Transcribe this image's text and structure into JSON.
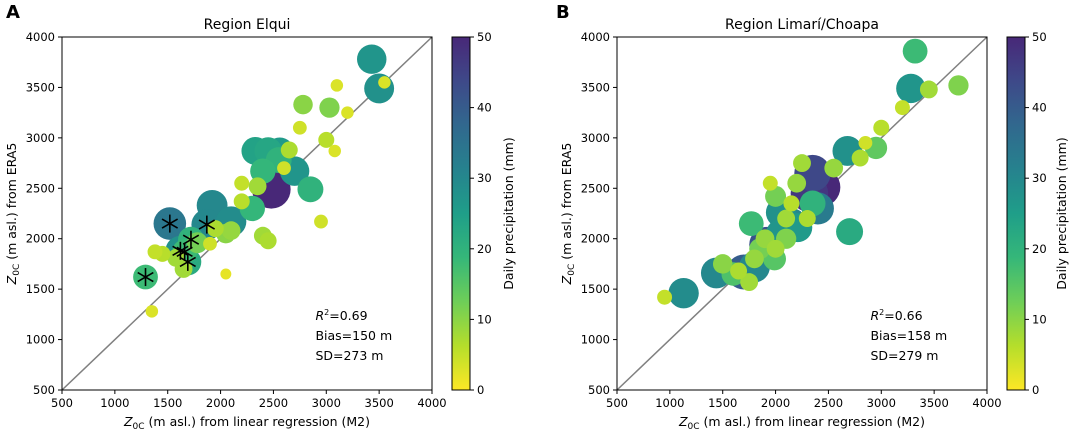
{
  "chart_data": [
    {
      "type": "scatter",
      "panel_label": "A",
      "title": "Region Elqui",
      "xlabel_sym": "Z",
      "xlabel_sub": "0C",
      "xlabel_rest": " (m asl.) from linear regression (M2)",
      "ylabel_sym": "Z",
      "ylabel_sub": "0C",
      "ylabel_rest": " (m asl.) from ERA5",
      "xlim": [
        500,
        4000
      ],
      "ylim": [
        500,
        4000
      ],
      "xticks": [
        "500",
        "1000",
        "1500",
        "2000",
        "2500",
        "3000",
        "3500",
        "4000"
      ],
      "yticks": [
        "500",
        "1000",
        "1500",
        "2000",
        "2500",
        "3000",
        "3500",
        "4000"
      ],
      "colorbar": {
        "label": "Daily precipitation (mm)",
        "range": [
          0,
          50
        ],
        "ticks": [
          "0",
          "10",
          "20",
          "30",
          "40",
          "50"
        ]
      },
      "stats": {
        "r2_sym": "R",
        "r2_sup": "2",
        "r2_val": "=0.69",
        "bias": "Bias=150 m",
        "sd": "SD=273 m"
      },
      "points": [
        [
          2480,
          2490,
          50
        ],
        [
          3430,
          3780,
          27
        ],
        [
          3500,
          3490,
          28
        ],
        [
          2400,
          2670,
          19
        ],
        [
          2550,
          2780,
          20
        ],
        [
          2700,
          2670,
          27
        ],
        [
          2330,
          2870,
          24
        ],
        [
          2450,
          2870,
          23
        ],
        [
          2560,
          2860,
          26
        ],
        [
          1920,
          2330,
          30
        ],
        [
          2100,
          2170,
          29
        ],
        [
          2300,
          2300,
          19
        ],
        [
          2850,
          2490,
          20
        ],
        [
          3030,
          3300,
          11
        ],
        [
          2780,
          3330,
          10
        ],
        [
          3000,
          2980,
          6
        ],
        [
          2050,
          2050,
          10
        ],
        [
          2100,
          2080,
          9
        ],
        [
          1780,
          1960,
          12
        ],
        [
          2400,
          2030,
          8
        ],
        [
          2450,
          1980,
          7
        ],
        [
          1950,
          2100,
          7
        ],
        [
          2200,
          2370,
          6
        ],
        [
          2350,
          2520,
          8
        ],
        [
          2650,
          2880,
          7
        ],
        [
          3100,
          3520,
          3
        ],
        [
          3200,
          3250,
          3
        ],
        [
          3550,
          3550,
          3
        ],
        [
          2600,
          2700,
          4
        ],
        [
          2200,
          2550,
          5
        ],
        [
          2750,
          3100,
          4
        ],
        [
          1900,
          1950,
          4
        ],
        [
          2050,
          1650,
          2
        ],
        [
          1350,
          1280,
          3
        ],
        [
          1380,
          1870,
          5
        ],
        [
          1580,
          1810,
          8
        ],
        [
          2950,
          2170,
          4
        ],
        [
          3080,
          2870,
          3
        ],
        [
          1450,
          1850,
          6
        ],
        [
          1650,
          1700,
          8
        ]
      ],
      "starred": [
        [
          1520,
          2150,
          34
        ],
        [
          1870,
          2140,
          30
        ],
        [
          1620,
          1880,
          28
        ],
        [
          1720,
          1990,
          20
        ],
        [
          1690,
          1770,
          22
        ],
        [
          1660,
          1870,
          18
        ],
        [
          1290,
          1620,
          18
        ]
      ]
    },
    {
      "type": "scatter",
      "panel_label": "B",
      "title": "Region Limarí/Choapa",
      "xlabel_sym": "Z",
      "xlabel_sub": "0C",
      "xlabel_rest": " (m asl.) from linear regression (M2)",
      "ylabel_sym": "Z",
      "ylabel_sub": "0C",
      "ylabel_rest": " (m asl.) from ERA5",
      "xlim": [
        500,
        4000
      ],
      "ylim": [
        500,
        4000
      ],
      "xticks": [
        "500",
        "1000",
        "1500",
        "2000",
        "2500",
        "3000",
        "3500",
        "4000"
      ],
      "yticks": [
        "500",
        "1000",
        "1500",
        "2000",
        "2500",
        "3000",
        "3500",
        "4000"
      ],
      "colorbar": {
        "label": "Daily precipitation (mm)",
        "range": [
          0,
          50
        ],
        "ticks": [
          "0",
          "10",
          "20",
          "30",
          "40",
          "50"
        ]
      },
      "stats": {
        "r2_sym": "R",
        "r2_sup": "2",
        "r2_val": "=0.66",
        "bias": "Bias=158 m",
        "sd": "SD=279 m"
      },
      "points": [
        [
          2430,
          2510,
          50
        ],
        [
          2350,
          2650,
          44
        ],
        [
          2320,
          2450,
          47
        ],
        [
          1920,
          1940,
          42
        ],
        [
          1700,
          1670,
          40
        ],
        [
          2400,
          2300,
          33
        ],
        [
          2150,
          2150,
          30
        ],
        [
          2050,
          2260,
          28
        ],
        [
          1440,
          1660,
          30
        ],
        [
          1130,
          1460,
          29
        ],
        [
          2680,
          2870,
          28
        ],
        [
          2700,
          2070,
          22
        ],
        [
          1800,
          1720,
          30
        ],
        [
          2050,
          2050,
          27
        ],
        [
          2210,
          2110,
          26
        ],
        [
          3280,
          3490,
          27
        ],
        [
          3320,
          3860,
          18
        ],
        [
          2950,
          2900,
          14
        ],
        [
          3730,
          3520,
          11
        ],
        [
          3450,
          3480,
          8
        ],
        [
          1770,
          2150,
          18
        ],
        [
          2000,
          2420,
          12
        ],
        [
          1600,
          1650,
          16
        ],
        [
          2350,
          2350,
          20
        ],
        [
          1990,
          1800,
          15
        ],
        [
          1850,
          1900,
          12
        ],
        [
          2100,
          2000,
          11
        ],
        [
          2200,
          2550,
          9
        ],
        [
          1500,
          1750,
          10
        ],
        [
          2550,
          2700,
          9
        ],
        [
          2800,
          2800,
          7
        ],
        [
          3000,
          3100,
          6
        ],
        [
          1750,
          1570,
          8
        ],
        [
          1650,
          1680,
          7
        ],
        [
          2250,
          2750,
          8
        ],
        [
          1900,
          2000,
          9
        ],
        [
          2100,
          2200,
          8
        ],
        [
          1950,
          2550,
          5
        ],
        [
          2150,
          2350,
          6
        ],
        [
          3200,
          3300,
          5
        ],
        [
          2850,
          2950,
          4
        ],
        [
          950,
          1420,
          5
        ],
        [
          1800,
          1800,
          9
        ],
        [
          2000,
          1900,
          8
        ],
        [
          2300,
          2200,
          7
        ]
      ],
      "starred": []
    }
  ]
}
